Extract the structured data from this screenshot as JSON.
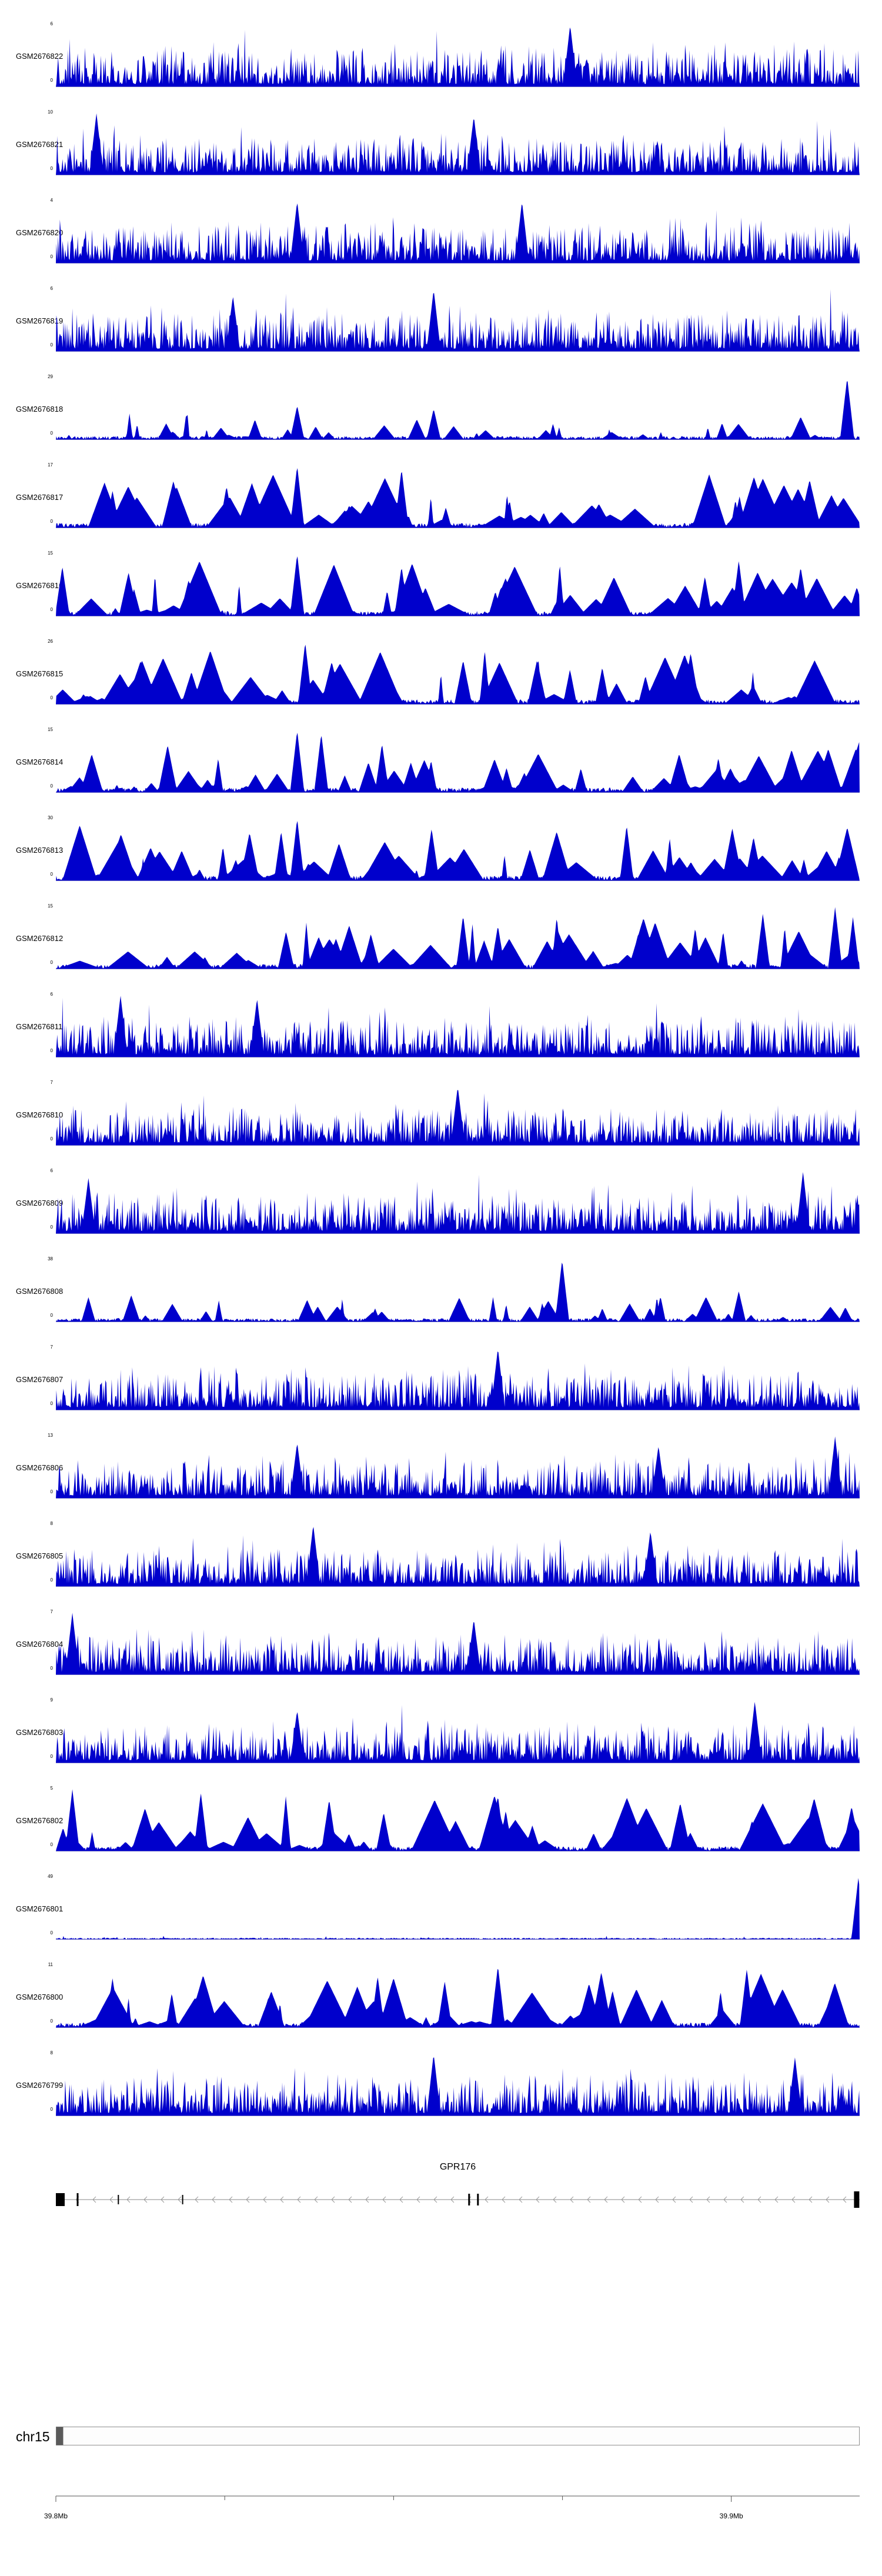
{
  "colors": {
    "signal": "#0000CC",
    "gene": "#000000",
    "arrow": "#999999",
    "gene_line": "#888888",
    "ideogram_border": "#909090",
    "ideogram_fill": "#fdfdfd",
    "ideogram_marker": "#5a5a5a",
    "ruler_line": "#555555"
  },
  "chart_data": {
    "type": "area",
    "layout": "genome-browser coverage tracks, gene model, chromosome ideogram with coordinate ruler",
    "grid": false,
    "legend": "none",
    "region": {
      "chromosome_label": "chr15",
      "xlim_mb": [
        39.8,
        39.919
      ],
      "ruler_major_ticks": [
        {
          "mb": 39.8,
          "label": "39.8Mb"
        },
        {
          "mb": 39.9,
          "label": "39.9Mb"
        }
      ],
      "ruler_minor_ticks_mb": [
        39.825,
        39.85,
        39.875
      ]
    },
    "gene": {
      "name": "GPR176",
      "strand": "-",
      "exons": [
        {
          "pos": 0.0,
          "w": 15,
          "h": 22
        },
        {
          "pos": 0.026,
          "w": 3,
          "h": 22
        },
        {
          "pos": 0.077,
          "w": 2,
          "h": 16
        },
        {
          "pos": 0.157,
          "w": 2,
          "h": 16
        },
        {
          "pos": 0.513,
          "w": 3,
          "h": 20
        },
        {
          "pos": 0.524,
          "w": 3,
          "h": 20
        },
        {
          "pos": 0.993,
          "w": 9,
          "h": 28
        }
      ]
    },
    "tracks": [
      {
        "label": "GSM2676822",
        "ymax": 6,
        "ymin": 0,
        "style": "dense",
        "seed": 1,
        "peaks": [
          {
            "pos": 0.64,
            "h": 1.0
          }
        ]
      },
      {
        "label": "GSM2676821",
        "ymax": 10,
        "ymin": 0,
        "style": "dense",
        "seed": 2,
        "peaks": [
          {
            "pos": 0.05,
            "h": 1.0
          },
          {
            "pos": 0.52,
            "h": 0.95
          }
        ]
      },
      {
        "label": "GSM2676820",
        "ymax": 4,
        "ymin": 0,
        "style": "dense",
        "seed": 3,
        "peaks": [
          {
            "pos": 0.3,
            "h": 1.0
          },
          {
            "pos": 0.58,
            "h": 1.0
          }
        ]
      },
      {
        "label": "GSM2676819",
        "ymax": 6,
        "ymin": 0,
        "style": "dense",
        "seed": 4,
        "peaks": [
          {
            "pos": 0.47,
            "h": 1.0
          },
          {
            "pos": 0.22,
            "h": 0.9
          }
        ]
      },
      {
        "label": "GSM2676818",
        "ymax": 29,
        "ymin": 0,
        "style": "sparse",
        "seed": 5,
        "peaks": [
          {
            "pos": 0.985,
            "h": 1.0
          },
          {
            "pos": 0.3,
            "h": 0.55
          },
          {
            "pos": 0.47,
            "h": 0.5
          }
        ]
      },
      {
        "label": "GSM2676817",
        "ymax": 17,
        "ymin": 0,
        "style": "peaky",
        "seed": 6,
        "peaks": [
          {
            "pos": 0.3,
            "h": 1.0
          },
          {
            "pos": 0.43,
            "h": 0.95
          },
          {
            "pos": 0.07,
            "h": 0.6
          }
        ]
      },
      {
        "label": "GSM2676816",
        "ymax": 15,
        "ymin": 0,
        "style": "peaky",
        "seed": 7,
        "peaks": [
          {
            "pos": 0.3,
            "h": 1.0
          },
          {
            "pos": 0.85,
            "h": 0.9
          },
          {
            "pos": 0.43,
            "h": 0.8
          }
        ]
      },
      {
        "label": "GSM2676815",
        "ymax": 26,
        "ymin": 0,
        "style": "peaky",
        "seed": 8,
        "peaks": [
          {
            "pos": 0.31,
            "h": 1.0
          },
          {
            "pos": 0.68,
            "h": 0.6
          }
        ]
      },
      {
        "label": "GSM2676814",
        "ymax": 15,
        "ymin": 0,
        "style": "peaky",
        "seed": 9,
        "peaks": [
          {
            "pos": 0.3,
            "h": 1.0
          },
          {
            "pos": 0.33,
            "h": 0.95
          }
        ]
      },
      {
        "label": "GSM2676813",
        "ymax": 30,
        "ymin": 0,
        "style": "peaky",
        "seed": 10,
        "peaks": [
          {
            "pos": 0.3,
            "h": 1.0
          },
          {
            "pos": 0.28,
            "h": 0.8
          }
        ]
      },
      {
        "label": "GSM2676812",
        "ymax": 15,
        "ymin": 0,
        "style": "peaky",
        "seed": 11,
        "peaks": [
          {
            "pos": 0.88,
            "h": 0.9
          },
          {
            "pos": 0.55,
            "h": 0.7
          },
          {
            "pos": 0.97,
            "h": 1.0
          }
        ]
      },
      {
        "label": "GSM2676811",
        "ymax": 6,
        "ymin": 0,
        "style": "dense",
        "seed": 12,
        "peaks": [
          {
            "pos": 0.08,
            "h": 1.0
          },
          {
            "pos": 0.25,
            "h": 0.95
          }
        ]
      },
      {
        "label": "GSM2676810",
        "ymax": 7,
        "ymin": 0,
        "style": "dense",
        "seed": 13,
        "peaks": [
          {
            "pos": 0.5,
            "h": 0.95
          }
        ]
      },
      {
        "label": "GSM2676809",
        "ymax": 6,
        "ymin": 0,
        "style": "dense",
        "seed": 14,
        "peaks": [
          {
            "pos": 0.93,
            "h": 1.0
          },
          {
            "pos": 0.04,
            "h": 0.9
          }
        ]
      },
      {
        "label": "GSM2676808",
        "ymax": 38,
        "ymin": 0,
        "style": "sparse",
        "seed": 15,
        "peaks": [
          {
            "pos": 0.63,
            "h": 1.0
          },
          {
            "pos": 0.04,
            "h": 0.4
          },
          {
            "pos": 0.85,
            "h": 0.5
          }
        ]
      },
      {
        "label": "GSM2676807",
        "ymax": 7,
        "ymin": 0,
        "style": "dense",
        "seed": 16,
        "peaks": [
          {
            "pos": 0.55,
            "h": 1.0
          }
        ]
      },
      {
        "label": "GSM2676806",
        "ymax": 13,
        "ymin": 0,
        "style": "dense",
        "seed": 17,
        "peaks": [
          {
            "pos": 0.3,
            "h": 0.9
          },
          {
            "pos": 0.75,
            "h": 0.85
          },
          {
            "pos": 0.97,
            "h": 1.0
          }
        ]
      },
      {
        "label": "GSM2676805",
        "ymax": 8,
        "ymin": 0,
        "style": "dense",
        "seed": 18,
        "peaks": [
          {
            "pos": 0.32,
            "h": 1.0
          },
          {
            "pos": 0.74,
            "h": 0.9
          }
        ]
      },
      {
        "label": "GSM2676804",
        "ymax": 7,
        "ymin": 0,
        "style": "dense",
        "seed": 19,
        "peaks": [
          {
            "pos": 0.02,
            "h": 1.0
          },
          {
            "pos": 0.52,
            "h": 0.9
          }
        ]
      },
      {
        "label": "GSM2676803",
        "ymax": 9,
        "ymin": 0,
        "style": "dense",
        "seed": 20,
        "peaks": [
          {
            "pos": 0.87,
            "h": 1.0
          },
          {
            "pos": 0.3,
            "h": 0.85
          }
        ]
      },
      {
        "label": "GSM2676802",
        "ymax": 5,
        "ymin": 0,
        "style": "peaky",
        "seed": 21,
        "peaks": [
          {
            "pos": 0.02,
            "h": 1.0
          },
          {
            "pos": 0.18,
            "h": 0.95
          },
          {
            "pos": 0.55,
            "h": 0.9
          }
        ]
      },
      {
        "label": "GSM2676801",
        "ymax": 49,
        "ymin": 0,
        "style": "flat",
        "seed": 22,
        "peaks": [
          {
            "pos": 0.999,
            "h": 1.0
          }
        ]
      },
      {
        "label": "GSM2676800",
        "ymax": 11,
        "ymin": 0,
        "style": "peaky",
        "seed": 23,
        "peaks": [
          {
            "pos": 0.55,
            "h": 1.0
          },
          {
            "pos": 0.86,
            "h": 0.95
          },
          {
            "pos": 0.07,
            "h": 0.8
          }
        ]
      },
      {
        "label": "GSM2676799",
        "ymax": 8,
        "ymin": 0,
        "style": "dense",
        "seed": 24,
        "peaks": [
          {
            "pos": 0.47,
            "h": 1.0
          },
          {
            "pos": 0.92,
            "h": 0.95
          }
        ]
      }
    ]
  }
}
